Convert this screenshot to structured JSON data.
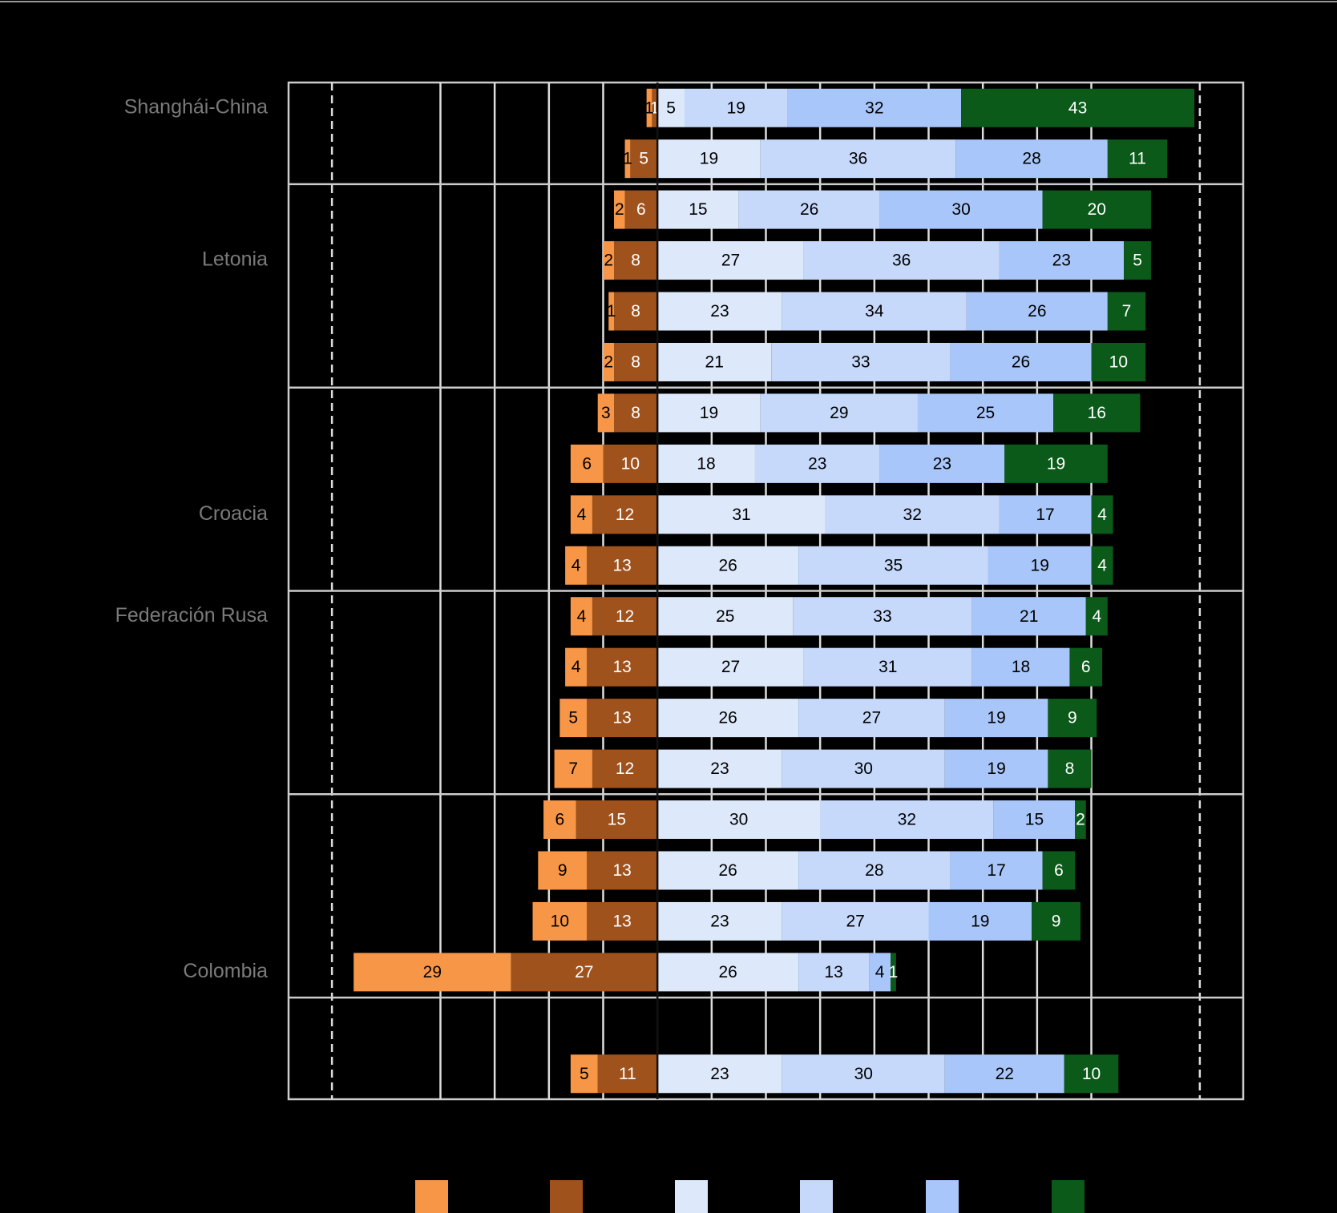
{
  "chart_data": {
    "type": "diverging-bar",
    "categories": [
      "Shanghái-China",
      null,
      null,
      "Letonia",
      null,
      null,
      null,
      null,
      "Croacia",
      null,
      "Federación Rusa",
      null,
      null,
      null,
      null,
      null,
      null,
      "Colombia",
      null,
      null
    ],
    "series": [
      {
        "color": "#f79646",
        "side": "left",
        "values": [
          1,
          1,
          2,
          2,
          1,
          2,
          3,
          6,
          4,
          4,
          4,
          4,
          5,
          7,
          6,
          9,
          10,
          29,
          null,
          5
        ]
      },
      {
        "color": "#a0521d",
        "side": "left",
        "values": [
          1,
          5,
          6,
          8,
          8,
          8,
          8,
          10,
          12,
          13,
          12,
          13,
          13,
          12,
          15,
          13,
          13,
          27,
          null,
          11
        ]
      },
      {
        "color": "#dde9fb",
        "side": "right",
        "values": [
          5,
          19,
          15,
          27,
          23,
          21,
          19,
          18,
          31,
          26,
          25,
          27,
          26,
          23,
          30,
          26,
          23,
          26,
          null,
          23
        ]
      },
      {
        "color": "#c6d9fb",
        "side": "right",
        "values": [
          19,
          36,
          26,
          36,
          34,
          33,
          29,
          23,
          32,
          35,
          33,
          31,
          27,
          30,
          32,
          28,
          27,
          13,
          null,
          30
        ]
      },
      {
        "color": "#a8c6fa",
        "side": "right",
        "values": [
          32,
          28,
          30,
          23,
          26,
          26,
          25,
          23,
          17,
          19,
          21,
          18,
          19,
          19,
          15,
          17,
          19,
          4,
          null,
          22
        ]
      },
      {
        "color": "#0b5a1a",
        "side": "right",
        "values": [
          43,
          11,
          20,
          5,
          7,
          10,
          16,
          19,
          4,
          4,
          4,
          6,
          9,
          8,
          2,
          6,
          9,
          1,
          null,
          10
        ]
      }
    ],
    "xlim": [
      -68,
      108
    ],
    "xticks": [
      -60,
      -40,
      -30,
      -20,
      -10,
      0,
      10,
      20,
      30,
      40,
      50,
      60,
      70,
      80,
      100
    ],
    "grid": true
  }
}
